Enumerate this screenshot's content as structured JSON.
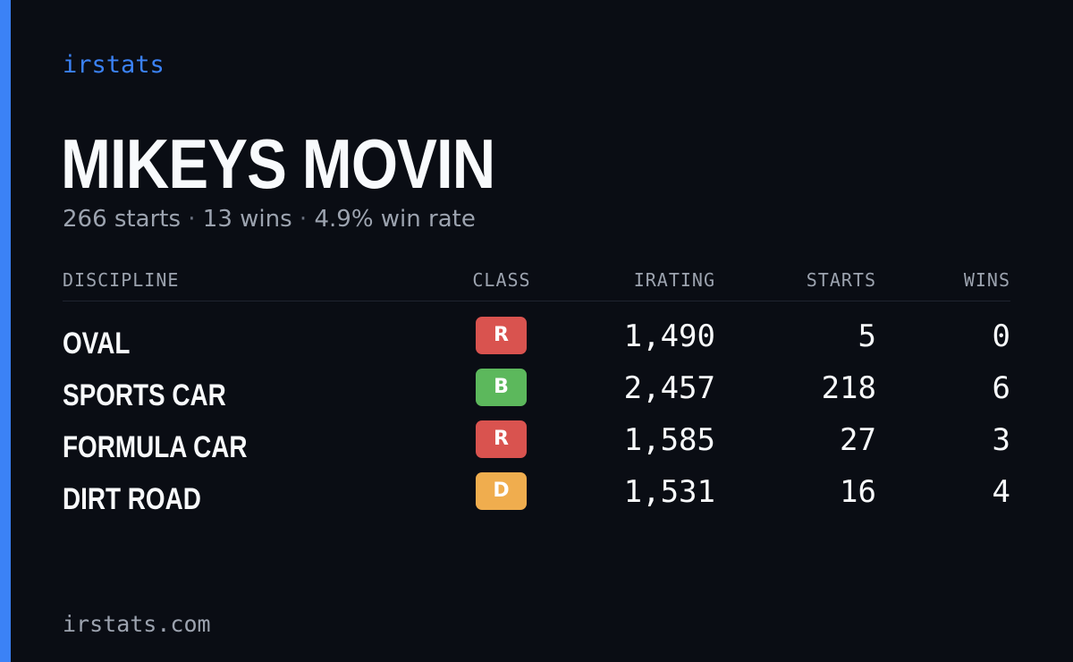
{
  "brand": "irstats",
  "driver": {
    "name": "MIKEYS MOVIN"
  },
  "summary": {
    "starts": "266 starts",
    "wins": "13 wins",
    "win_rate": "4.9% win rate",
    "separator": " · "
  },
  "table": {
    "headers": {
      "discipline": "DISCIPLINE",
      "class": "CLASS",
      "irating": "IRATING",
      "starts": "STARTS",
      "wins": "WINS"
    },
    "rows": [
      {
        "discipline": "OVAL",
        "class": "R",
        "class_color": "#d9534f",
        "irating": "1,490",
        "starts": "5",
        "wins": "0"
      },
      {
        "discipline": "SPORTS CAR",
        "class": "B",
        "class_color": "#5cb85c",
        "irating": "2,457",
        "starts": "218",
        "wins": "6"
      },
      {
        "discipline": "FORMULA CAR",
        "class": "R",
        "class_color": "#d9534f",
        "irating": "1,585",
        "starts": "27",
        "wins": "3"
      },
      {
        "discipline": "DIRT ROAD",
        "class": "D",
        "class_color": "#f0ad4e",
        "irating": "1,531",
        "starts": "16",
        "wins": "4"
      }
    ]
  },
  "footer": {
    "site": "irstats.com"
  },
  "colors": {
    "accent": "#3b82f6",
    "background": "#0a0d14",
    "text_primary": "#f8fafc",
    "text_muted": "#9ca3af"
  }
}
